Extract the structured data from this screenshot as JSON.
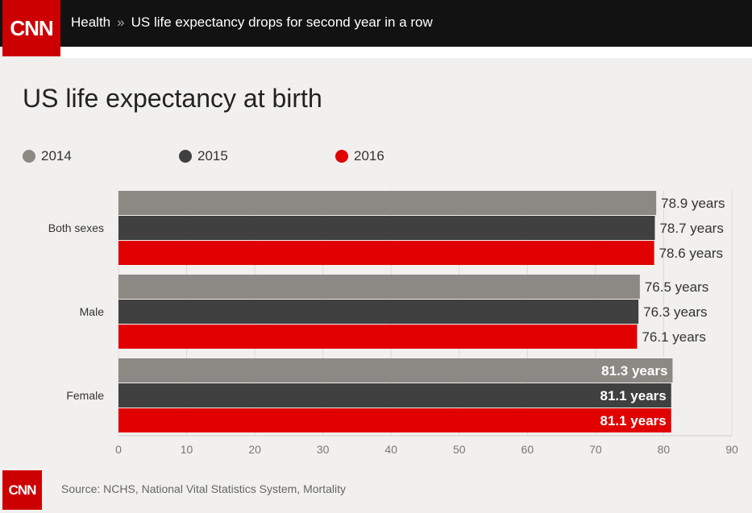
{
  "header": {
    "logo_text": "CNN",
    "section": "Health",
    "separator": "»",
    "headline": "US life expectancy drops for second year in a row"
  },
  "colors": {
    "2014": "#8c8883",
    "2015": "#404040",
    "2016": "#e00000"
  },
  "chart_data": {
    "type": "bar",
    "orientation": "horizontal",
    "title": "US life expectancy at birth",
    "categories": [
      "Both sexes",
      "Male",
      "Female"
    ],
    "series": [
      {
        "name": "2014",
        "values": [
          78.9,
          76.5,
          81.3
        ],
        "labels": [
          "78.9 years",
          "76.5 years",
          "81.3 years"
        ]
      },
      {
        "name": "2015",
        "values": [
          78.7,
          76.3,
          81.1
        ],
        "labels": [
          "78.7 years",
          "76.3 years",
          "81.1 years"
        ]
      },
      {
        "name": "2016",
        "values": [
          78.6,
          76.1,
          81.1
        ],
        "labels": [
          "78.6 years",
          "76.1 years",
          "81.1 years"
        ]
      }
    ],
    "xlim": [
      0,
      90
    ],
    "xticks": [
      0,
      10,
      20,
      30,
      40,
      50,
      60,
      70,
      80,
      90
    ],
    "grid": true,
    "legend_position": "top-left"
  },
  "footer": {
    "logo_text": "CNN",
    "source": "Source: NCHS, National Vital Statistics System, Mortality"
  }
}
